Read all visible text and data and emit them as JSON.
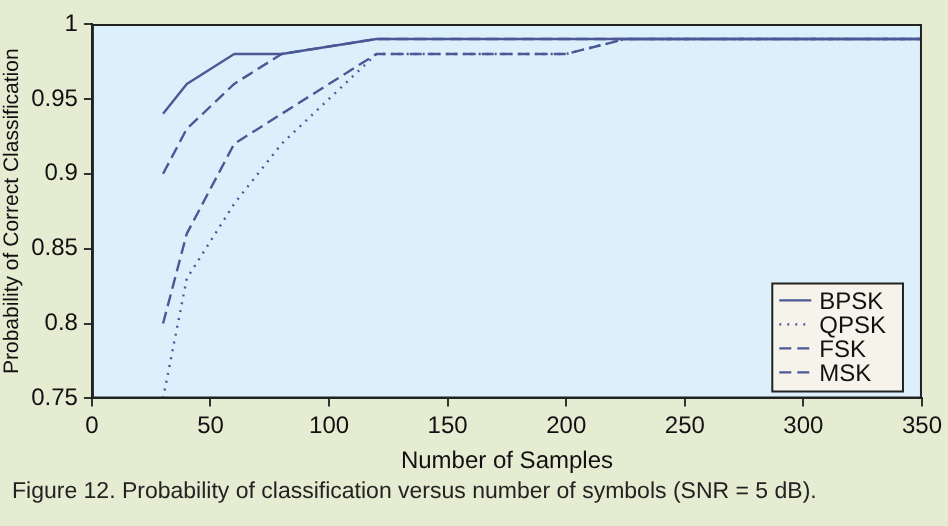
{
  "chart_data": {
    "type": "line",
    "xlabel": "Number of Samples",
    "ylabel": "Probability of Correct Classification",
    "x": [
      30,
      40,
      60,
      80,
      120,
      150,
      200,
      225,
      250,
      300,
      350
    ],
    "series": [
      {
        "name": "BPSK",
        "color": "#4a5896",
        "line_style": "solid",
        "values": [
          0.94,
          0.96,
          0.98,
          0.98,
          0.99,
          0.99,
          0.99,
          0.99,
          0.99,
          0.99,
          0.99
        ]
      },
      {
        "name": "QPSK",
        "color": "#4a5896",
        "line_style": "dotted",
        "values": [
          0.75,
          0.83,
          0.88,
          0.92,
          0.98,
          0.98,
          0.98,
          0.99,
          0.99,
          0.99,
          0.99
        ]
      },
      {
        "name": "FSK",
        "color": "#4a5896",
        "line_style": "dashed",
        "values": [
          0.8,
          0.86,
          0.92,
          0.94,
          0.98,
          0.98,
          0.98,
          0.99,
          0.99,
          0.99,
          0.99
        ]
      },
      {
        "name": "MSK",
        "color": "#4a5896",
        "line_style": "dashed",
        "values": [
          0.9,
          0.93,
          0.96,
          0.98,
          0.99,
          0.99,
          0.99,
          0.99,
          0.99,
          0.99,
          0.99
        ]
      }
    ],
    "xlim": [
      0,
      350
    ],
    "xticks": [
      0,
      50,
      100,
      150,
      200,
      250,
      300,
      350
    ],
    "ylim": [
      0.75,
      1
    ],
    "yticks": [
      0.75,
      0.8,
      0.85,
      0.9,
      0.95,
      1
    ],
    "grid": false,
    "legend": "bottom right",
    "marker": "none",
    "annotations": [
      "Figure 12. Probability of classification versus number of symbols (SNR = 5 dB)."
    ]
  }
}
